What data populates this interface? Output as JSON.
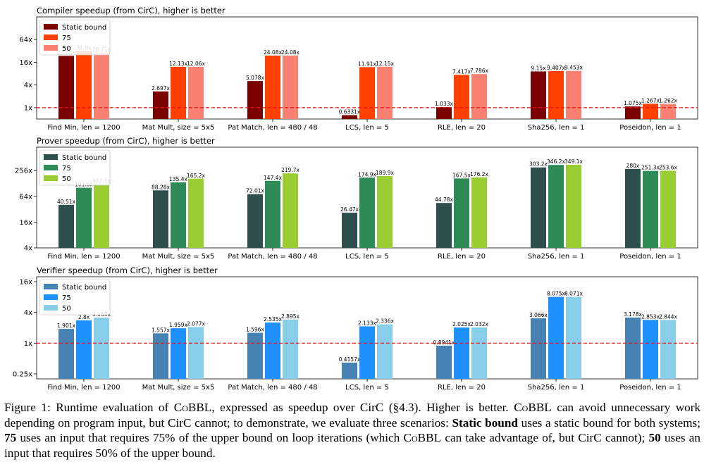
{
  "chart_data": [
    {
      "type": "bar",
      "title": "Compiler speedup (from CirC), higher is better",
      "scale": "log2",
      "ylim": [
        0.5,
        256
      ],
      "yticks": [
        {
          "v": 1,
          "label": "1x"
        },
        {
          "v": 4,
          "label": "4x"
        },
        {
          "v": 16,
          "label": "16x"
        },
        {
          "v": 64,
          "label": "64x"
        }
      ],
      "baseline": 1,
      "legend_position": "top-left",
      "categories": [
        "Find Min, len = 1200",
        "Mat Mult, size = 5x5",
        "Pat Match, len = 480 / 48",
        "LCS, len = 5",
        "RLE, len = 20",
        "Sha256, len = 1",
        "Poseidon, len = 1"
      ],
      "series": [
        {
          "name": "Static bound",
          "color": "#7b0000",
          "values": [
            23.66,
            2.697,
            5.078,
            0.6331,
            1.033,
            9.15,
            1.075
          ],
          "labels": [
            "23.66x",
            "2.697x",
            "5.078x",
            "0.6331x",
            "1.033x",
            "9.15x",
            "1.075x"
          ]
        },
        {
          "name": "75",
          "color": "#ff4000",
          "values": [
            31.9,
            12.13,
            24.08,
            11.91,
            7.417,
            9.407,
            1.267
          ],
          "labels": [
            "31.9x",
            "12.13x",
            "24.08x",
            "11.91x",
            "7.417x",
            "9.407x",
            "1.267x"
          ]
        },
        {
          "name": "50",
          "color": "#fa8072",
          "values": [
            28.71,
            12.06,
            24.08,
            12.15,
            7.786,
            9.453,
            1.262
          ],
          "labels": [
            "28.71x",
            "12.06x",
            "24.08x",
            "12.15x",
            "7.786x",
            "9.453x",
            "1.262x"
          ]
        }
      ]
    },
    {
      "type": "bar",
      "title": "Prover speedup (from CirC), higher is better",
      "scale": "log2",
      "ylim": [
        4,
        900
      ],
      "yticks": [
        {
          "v": 4,
          "label": "4x"
        },
        {
          "v": 16,
          "label": "16x"
        },
        {
          "v": 64,
          "label": "64x"
        },
        {
          "v": 256,
          "label": "256x"
        }
      ],
      "baseline": null,
      "legend_position": "top-left",
      "categories": [
        "Find Min, len = 1200",
        "Mat Mult, size = 5x5",
        "Pat Match, len = 480 / 48",
        "LCS, len = 5",
        "RLE, len = 20",
        "Sha256, len = 1",
        "Poseidon, len = 1"
      ],
      "series": [
        {
          "name": "Static bound",
          "color": "#2f4f4f",
          "values": [
            40.51,
            88.28,
            72.01,
            26.47,
            44.78,
            303.2,
            280
          ],
          "labels": [
            "40.51x",
            "88.28x",
            "72.01x",
            "26.47x",
            "44.78x",
            "303.2x",
            "280x"
          ]
        },
        {
          "name": "75",
          "color": "#2e8b57",
          "values": [
            101.6,
            135.4,
            147.4,
            174.9,
            167.5,
            346.2,
            251.3
          ],
          "labels": [
            "101.6x",
            "135.4x",
            "147.4x",
            "174.9x",
            "167.5x",
            "346.2x",
            "251.3x"
          ]
        },
        {
          "name": "50",
          "color": "#9acd32",
          "values": [
            122.1,
            165.2,
            219.7,
            189.9,
            176.2,
            349.1,
            253.6
          ],
          "labels": [
            "122.1x",
            "165.2x",
            "219.7x",
            "189.9x",
            "176.2x",
            "349.1x",
            "253.6x"
          ]
        }
      ]
    },
    {
      "type": "bar",
      "title": "Verifier speedup (from CirC), higher is better",
      "scale": "log2",
      "ylim": [
        0.2,
        20
      ],
      "yticks": [
        {
          "v": 0.25,
          "label": "0.25x"
        },
        {
          "v": 1,
          "label": "1x"
        },
        {
          "v": 4,
          "label": "4x"
        },
        {
          "v": 16,
          "label": "16x"
        }
      ],
      "baseline": 1,
      "legend_position": "top-left",
      "categories": [
        "Find Min, len = 1200",
        "Mat Mult, size = 5x5",
        "Pat Match, len = 480 / 48",
        "LCS, len = 5",
        "RLE, len = 20",
        "Sha256, len = 1",
        "Poseidon, len = 1"
      ],
      "series": [
        {
          "name": "Static bound",
          "color": "#4682b4",
          "values": [
            1.901,
            1.557,
            1.596,
            0.4157,
            0.8941,
            3.066,
            3.178
          ],
          "labels": [
            "1.901x",
            "1.557x",
            "1.596x",
            "0.4157x",
            "0.8941x",
            "3.066x",
            "3.178x"
          ]
        },
        {
          "name": "75",
          "color": "#1e90ff",
          "values": [
            2.8,
            1.959,
            2.535,
            2.133,
            2.025,
            8.075,
            2.853
          ],
          "labels": [
            "2.8x",
            "1.959x",
            "2.535x",
            "2.133x",
            "2.025x",
            "8.075x",
            "2.853x"
          ]
        },
        {
          "name": "50",
          "color": "#87ceeb",
          "values": [
            3.153,
            2.077,
            2.895,
            2.336,
            2.032,
            8.071,
            2.844
          ],
          "labels": [
            "3.153x",
            "2.077x",
            "2.895x",
            "2.336x",
            "2.032x",
            "8.071x",
            "2.844x"
          ]
        }
      ]
    }
  ],
  "caption": {
    "figure_label": "Figure 1:",
    "text_1": "Runtime evaluation of",
    "cobbl": "CoBBL",
    "text_2": ", expressed as speedup over CirC (§4.3). Higher is better.",
    "text_3": "can avoid unnecessary work depending on program input, but CirC cannot; to demonstrate, we evaluate three scenarios:",
    "static_bound": "Static bound",
    "text_4": "uses a static bound for both systems;",
    "seventy_five": "75",
    "text_5": "uses an input that requires 75% of the upper bound on loop iterations (which",
    "text_6": "can take advantage of, but CirC cannot);",
    "fifty": "50",
    "text_7": "uses an input that requires 50% of the upper bound."
  }
}
